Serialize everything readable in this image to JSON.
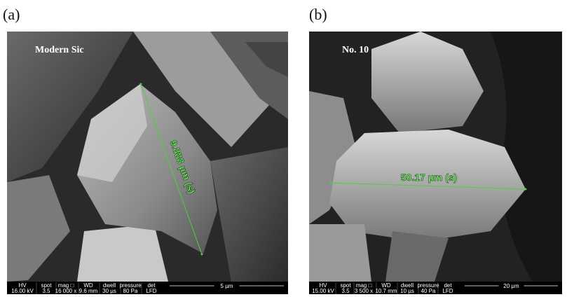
{
  "panels": [
    {
      "label": "(a)",
      "caption": "Modern Sic",
      "measurement": "9.888 µm (s)",
      "info": {
        "headers": [
          "HV",
          "spot",
          "mag □",
          "WD",
          "dwell",
          "pressure",
          "det"
        ],
        "values": [
          "16.00 kV",
          "3.5",
          "16 000 x",
          "9.6 mm",
          "30 µs",
          "80 Pa",
          "LFD"
        ]
      },
      "scale": "5 µm"
    },
    {
      "label": "(b)",
      "caption": "No. 10",
      "measurement": "50.17 µm (s)",
      "info": {
        "headers": [
          "HV",
          "spot",
          "mag □",
          "WD",
          "dwell",
          "pressure",
          "det"
        ],
        "values": [
          "15.00 kV",
          "3.5",
          "3 500 x",
          "10.7 mm",
          "10 µs",
          "40 Pa",
          "LFD"
        ]
      },
      "scale": "20 µm"
    }
  ]
}
